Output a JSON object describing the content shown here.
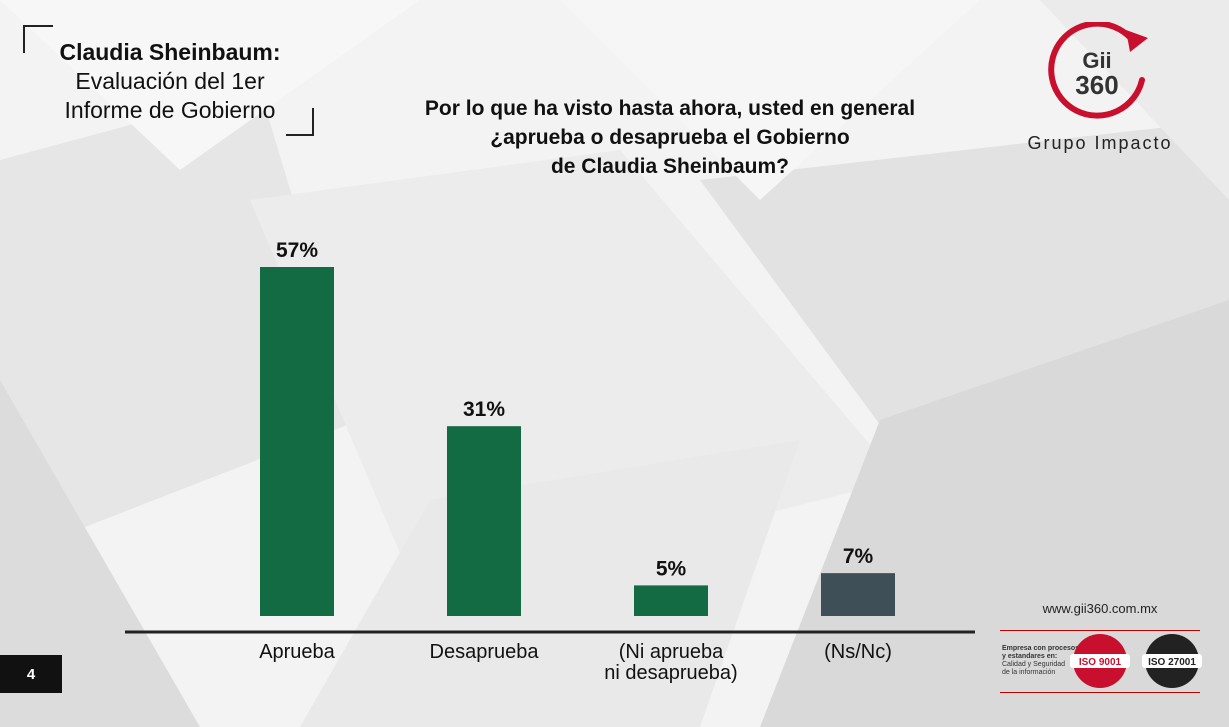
{
  "header": {
    "title": "Claudia Sheinbaum:",
    "subtitle_lines": [
      "Evaluación del 1er",
      "Informe de Gobierno"
    ]
  },
  "question_lines": [
    "Por lo que ha visto hasta ahora, usted en general",
    "¿aprueba o desaprueba el Gobierno",
    "de Claudia Sheinbaum?"
  ],
  "logo": {
    "text_line1": "Gii",
    "text_line2": "360",
    "tagline": "Grupo Impacto"
  },
  "chart_data": {
    "type": "bar",
    "categories": [
      [
        "Aprueba"
      ],
      [
        "Desaprueba"
      ],
      [
        "(Ni aprueba",
        "ni desaprueba)"
      ],
      [
        "(Ns/Nc)"
      ]
    ],
    "values": [
      57,
      31,
      5,
      7
    ],
    "value_labels": [
      "57%",
      "31%",
      "5%",
      "7%"
    ],
    "colors": [
      "#136b43",
      "#136b43",
      "#136b43",
      "#3e4f58"
    ],
    "title": "",
    "xlabel": "",
    "ylabel": "",
    "ylim": [
      0,
      57
    ],
    "grid": false,
    "legend": "none"
  },
  "footer": {
    "website": "www.gii360.com.mx",
    "cert_bold": [
      "Empresa con procesos",
      "y estandares en:"
    ],
    "cert_lines": [
      "Calidad y Seguridad",
      "de la información"
    ],
    "badges": [
      "ISO 9001",
      "ISO 27001"
    ],
    "badge_colors": [
      "#c8102e",
      "#222222"
    ],
    "page_number": "4"
  }
}
